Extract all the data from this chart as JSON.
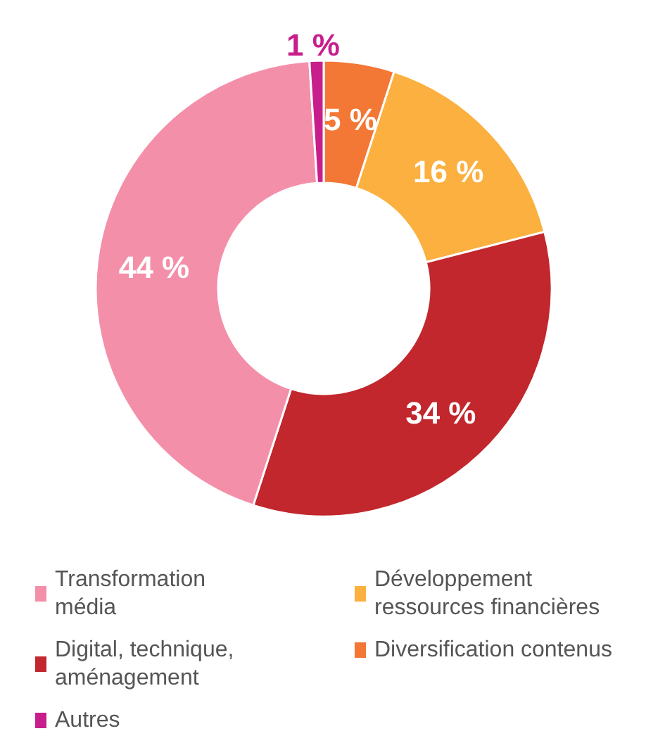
{
  "chart_data": {
    "type": "donut",
    "categories": [
      "Diversification contenus",
      "Développement ressources financières",
      "Digital, technique, aménagement",
      "Transformation média",
      "Autres"
    ],
    "values": [
      5,
      16,
      34,
      44,
      1
    ],
    "value_labels": [
      "5 %",
      "16 %",
      "34 %",
      "44 %",
      "1 %"
    ],
    "colors": [
      "#f37735",
      "#fbb040",
      "#c1272d",
      "#f48fa9",
      "#c81e8c"
    ],
    "legend": "bottom"
  }
}
